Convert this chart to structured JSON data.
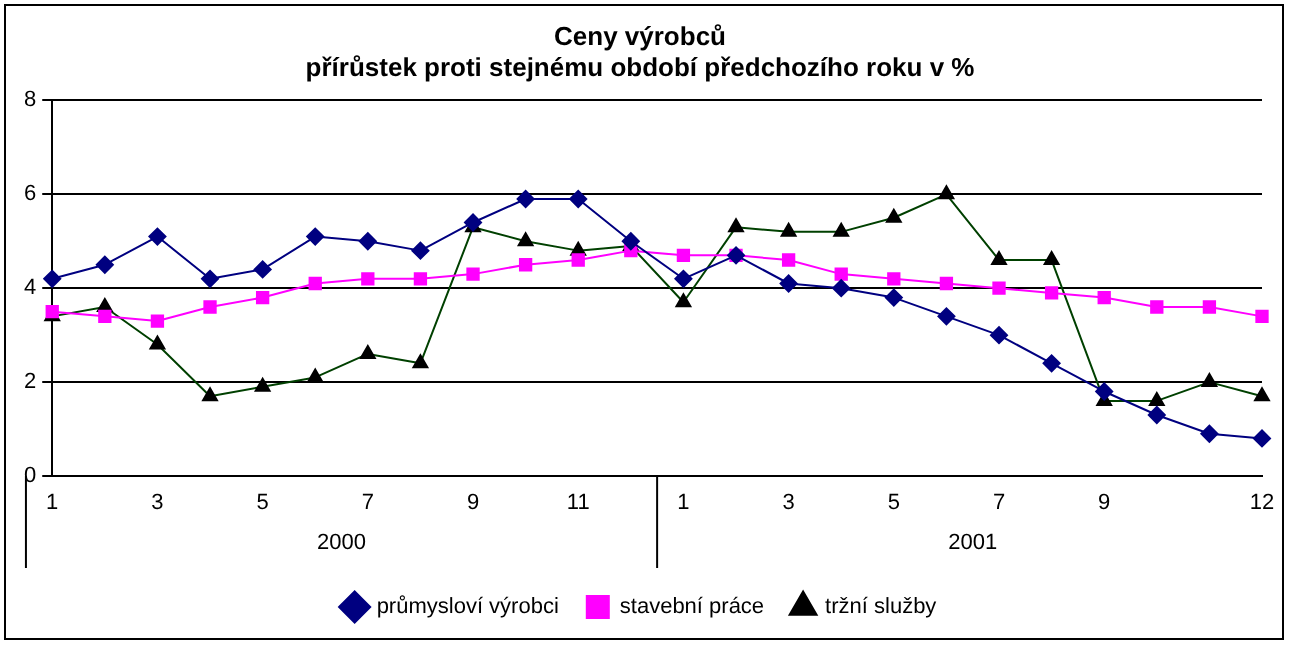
{
  "chart_data": {
    "type": "line",
    "title": "Ceny výrobců",
    "subtitle": "přírůstek proti stejnému období předchozího roku v %",
    "categories": [
      "1",
      null,
      "3",
      null,
      "5",
      null,
      "7",
      null,
      "9",
      null,
      "11",
      null,
      "1",
      null,
      "3",
      null,
      "5",
      null,
      "7",
      null,
      "9",
      null,
      null,
      "12"
    ],
    "series": [
      {
        "name": "průmysloví výrobci",
        "color": "#000080",
        "marker": "diamond",
        "values": [
          4.2,
          4.5,
          5.1,
          4.2,
          4.4,
          5.1,
          5.0,
          4.8,
          5.4,
          5.9,
          5.9,
          5.0,
          4.2,
          4.7,
          4.1,
          4.0,
          3.8,
          3.4,
          3.0,
          2.4,
          1.8,
          1.3,
          0.9,
          0.8
        ]
      },
      {
        "name": "stavební práce",
        "color": "#ff00ff",
        "marker": "square",
        "values": [
          3.5,
          3.4,
          3.3,
          3.6,
          3.8,
          4.1,
          4.2,
          4.2,
          4.3,
          4.5,
          4.6,
          4.8,
          4.7,
          4.7,
          4.6,
          4.3,
          4.2,
          4.1,
          4.0,
          3.9,
          3.8,
          3.6,
          3.6,
          3.4
        ]
      },
      {
        "name": "tržní služby",
        "color": "#004000",
        "marker": "triangle",
        "values": [
          3.4,
          3.6,
          2.8,
          1.7,
          1.9,
          2.1,
          2.6,
          2.4,
          5.3,
          5.0,
          4.8,
          4.9,
          3.7,
          5.3,
          5.2,
          5.2,
          5.5,
          6.0,
          4.6,
          4.6,
          1.6,
          1.6,
          2.0,
          1.7
        ]
      }
    ],
    "annotations": [
      "2000",
      "2001"
    ],
    "ylim": [
      0,
      8
    ],
    "yticks": [
      0,
      2,
      4,
      6,
      8
    ],
    "grid": "y",
    "legend": "bottom"
  }
}
